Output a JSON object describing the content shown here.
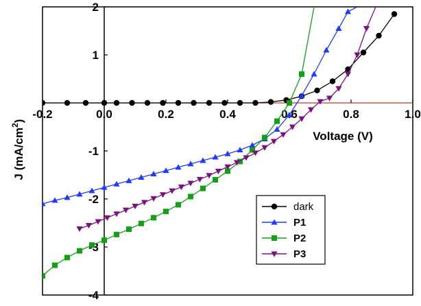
{
  "chart_data": {
    "type": "line",
    "title": "",
    "xlabel": "Voltage (V)",
    "ylabel_main": "J (mA/cm",
    "ylabel_sup": "2",
    "ylabel_close": ")",
    "xlim": [
      -0.2,
      1.0
    ],
    "ylim": [
      -4,
      2
    ],
    "x_ticks": [
      -0.2,
      0.0,
      0.2,
      0.4,
      0.6,
      0.8,
      1.0
    ],
    "x_tick_labels": [
      "-0.2",
      "0.0",
      "0.2",
      "0.4",
      "0.6",
      "0.8",
      "1.0"
    ],
    "y_ticks": [
      2,
      1,
      -1,
      -2,
      -3,
      -4
    ],
    "y_tick_labels": [
      "2",
      "1",
      "-1",
      "-2",
      "-3",
      "-4"
    ],
    "zero_line_color": "#c0392b",
    "grid": false,
    "legend_position": "bottom-right",
    "series": [
      {
        "name": "dark",
        "color": "#000000",
        "marker": "circle",
        "bold_label": false,
        "x": [
          -0.2,
          -0.12,
          -0.06,
          0.0,
          0.04,
          0.09,
          0.14,
          0.19,
          0.24,
          0.29,
          0.34,
          0.39,
          0.44,
          0.49,
          0.54,
          0.59,
          0.64,
          0.69,
          0.74,
          0.79,
          0.84,
          0.89,
          0.94
        ],
        "y": [
          0,
          0,
          0,
          0,
          0,
          0,
          0,
          0,
          0,
          0,
          0,
          0,
          0,
          0,
          0.02,
          0.06,
          0.14,
          0.26,
          0.45,
          0.7,
          1.05,
          1.4,
          1.85
        ]
      },
      {
        "name": "P1",
        "color": "#1f3bff",
        "marker": "triangle-up",
        "bold_label": true,
        "x": [
          -0.2,
          -0.16,
          -0.12,
          -0.08,
          -0.04,
          0.0,
          0.04,
          0.08,
          0.12,
          0.16,
          0.2,
          0.24,
          0.28,
          0.32,
          0.36,
          0.4,
          0.44,
          0.48,
          0.52,
          0.56,
          0.6,
          0.64,
          0.68,
          0.72,
          0.76,
          0.79,
          0.82
        ],
        "y": [
          -2.1,
          -2.03,
          -1.97,
          -1.9,
          -1.83,
          -1.76,
          -1.69,
          -1.62,
          -1.55,
          -1.48,
          -1.41,
          -1.34,
          -1.27,
          -1.2,
          -1.13,
          -1.06,
          -0.98,
          -0.88,
          -0.75,
          -0.55,
          -0.25,
          0.15,
          0.6,
          1.1,
          1.55,
          1.9,
          2.0
        ]
      },
      {
        "name": "P2",
        "color": "#13a017",
        "marker": "square",
        "bold_label": true,
        "x": [
          -0.2,
          -0.16,
          -0.12,
          -0.08,
          -0.04,
          0.0,
          0.04,
          0.08,
          0.12,
          0.16,
          0.2,
          0.24,
          0.28,
          0.32,
          0.36,
          0.4,
          0.44,
          0.48,
          0.52,
          0.56,
          0.6,
          0.64,
          0.68
        ],
        "y": [
          -3.6,
          -3.38,
          -3.22,
          -3.08,
          -2.96,
          -2.86,
          -2.74,
          -2.63,
          -2.51,
          -2.39,
          -2.26,
          -2.12,
          -1.95,
          -1.78,
          -1.6,
          -1.42,
          -1.22,
          -0.98,
          -0.72,
          -0.38,
          0.0,
          0.6,
          2.0
        ]
      },
      {
        "name": "P3",
        "color": "#7b1180",
        "marker": "triangle-down",
        "bold_label": true,
        "x": [
          -0.08,
          -0.05,
          -0.02,
          0.01,
          0.04,
          0.07,
          0.1,
          0.13,
          0.16,
          0.19,
          0.22,
          0.25,
          0.28,
          0.31,
          0.34,
          0.37,
          0.4,
          0.43,
          0.46,
          0.49,
          0.52,
          0.55,
          0.58,
          0.61,
          0.64,
          0.67,
          0.7,
          0.73,
          0.76,
          0.79,
          0.82,
          0.85,
          0.88
        ],
        "y": [
          -2.62,
          -2.55,
          -2.47,
          -2.39,
          -2.31,
          -2.23,
          -2.15,
          -2.07,
          -1.99,
          -1.91,
          -1.83,
          -1.75,
          -1.67,
          -1.59,
          -1.51,
          -1.42,
          -1.33,
          -1.24,
          -1.14,
          -1.04,
          -0.93,
          -0.8,
          -0.66,
          -0.5,
          -0.33,
          -0.14,
          0.03,
          0.1,
          0.3,
          0.6,
          1.0,
          1.55,
          2.0
        ]
      }
    ]
  }
}
